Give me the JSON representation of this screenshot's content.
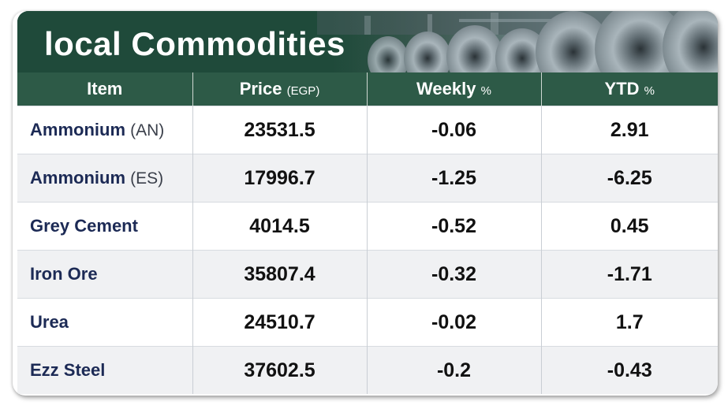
{
  "title": "local Commodities",
  "columns": [
    {
      "label": "Item",
      "unit": ""
    },
    {
      "label": "Price",
      "unit": "(EGP)"
    },
    {
      "label": "Weekly",
      "unit": "%"
    },
    {
      "label": "YTD",
      "unit": "%"
    }
  ],
  "rows": [
    {
      "item": "Ammonium",
      "sub": "(AN)",
      "price": "23531.5",
      "weekly": "-0.06",
      "ytd": "2.91"
    },
    {
      "item": "Ammonium",
      "sub": "(ES)",
      "price": "17996.7",
      "weekly": "-1.25",
      "ytd": "-6.25"
    },
    {
      "item": "Grey Cement",
      "sub": "",
      "price": "4014.5",
      "weekly": "-0.52",
      "ytd": "0.45"
    },
    {
      "item": "Iron Ore",
      "sub": "",
      "price": "35807.4",
      "weekly": "-0.32",
      "ytd": "-1.71"
    },
    {
      "item": "Urea",
      "sub": "",
      "price": "24510.7",
      "weekly": "-0.02",
      "ytd": "1.7"
    },
    {
      "item": "Ezz Steel",
      "sub": "",
      "price": "37602.5",
      "weekly": "-0.2",
      "ytd": "-0.43"
    }
  ],
  "colors": {
    "header_green": "#2d5a47",
    "banner_green": "#1f4a3a",
    "item_text": "#1c2a55",
    "row_alt": "#f0f1f3"
  },
  "banner_image": "steel-coils-photo"
}
